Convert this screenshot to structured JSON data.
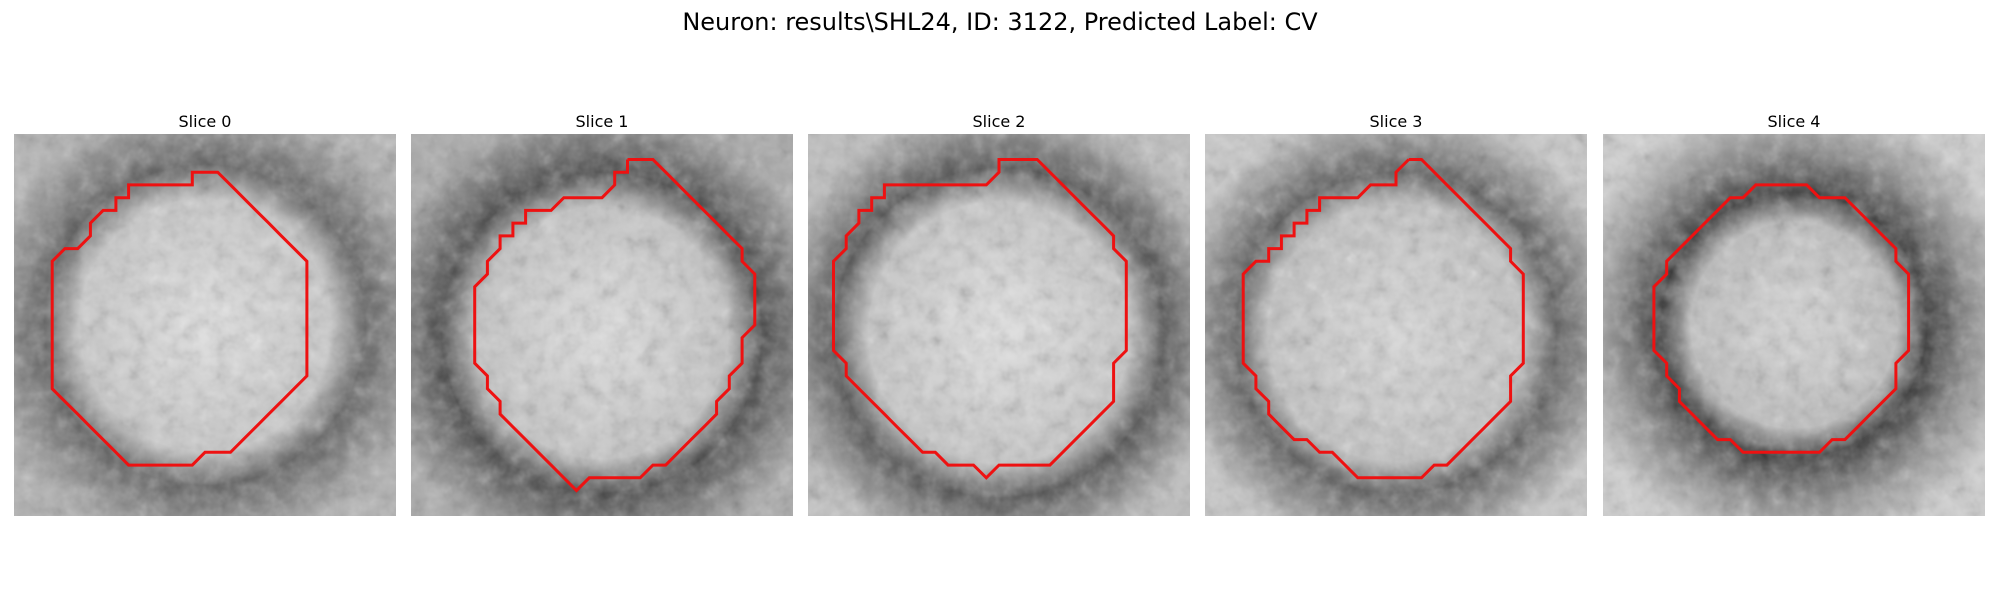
{
  "figure": {
    "suptitle": "Neuron: results\\SHL24, ID: 3122, Predicted Label: CV",
    "contour_color": "#ee1111"
  },
  "panels": [
    {
      "title": "Slice 0",
      "contour": [
        [
          9,
          2
        ],
        [
          10,
          2
        ],
        [
          11,
          3
        ],
        [
          12,
          4
        ],
        [
          13,
          5
        ],
        [
          14,
          6
        ],
        [
          15,
          7
        ],
        [
          16,
          8
        ],
        [
          17,
          9
        ],
        [
          17,
          10
        ],
        [
          17,
          11
        ],
        [
          17,
          12
        ],
        [
          17,
          13
        ],
        [
          17,
          14
        ],
        [
          17,
          15
        ],
        [
          17,
          16
        ],
        [
          17,
          17
        ],
        [
          17,
          18
        ],
        [
          16,
          19
        ],
        [
          15,
          20
        ],
        [
          14,
          21
        ],
        [
          13,
          22
        ],
        [
          12,
          23
        ],
        [
          11,
          24
        ],
        [
          10,
          24
        ],
        [
          9,
          24
        ],
        [
          8,
          25
        ],
        [
          7,
          25
        ],
        [
          6,
          25
        ],
        [
          5,
          25
        ],
        [
          4,
          25
        ],
        [
          3,
          25
        ],
        [
          2,
          24
        ],
        [
          1,
          23
        ],
        [
          0,
          22
        ],
        [
          -1,
          21
        ],
        [
          -2,
          20
        ],
        [
          -3,
          19
        ],
        [
          -3,
          18
        ],
        [
          -3,
          17
        ],
        [
          -3,
          16
        ],
        [
          -3,
          15
        ],
        [
          -3,
          14
        ],
        [
          -3,
          13
        ],
        [
          -3,
          12
        ],
        [
          -3,
          11
        ],
        [
          -3,
          10
        ],
        [
          -3,
          9
        ],
        [
          -2,
          8
        ],
        [
          -1,
          8
        ],
        [
          0,
          7
        ],
        [
          0,
          6
        ],
        [
          1,
          5
        ],
        [
          2,
          5
        ],
        [
          2,
          4
        ],
        [
          3,
          4
        ],
        [
          3,
          3
        ],
        [
          4,
          3
        ],
        [
          5,
          3
        ],
        [
          6,
          3
        ],
        [
          7,
          3
        ],
        [
          8,
          3
        ],
        [
          8,
          2
        ]
      ]
    },
    {
      "title": "Slice 1",
      "contour": [
        [
          11,
          1
        ],
        [
          12,
          1
        ],
        [
          13,
          1
        ],
        [
          14,
          2
        ],
        [
          15,
          3
        ],
        [
          16,
          4
        ],
        [
          17,
          5
        ],
        [
          18,
          6
        ],
        [
          19,
          7
        ],
        [
          20,
          8
        ],
        [
          20,
          9
        ],
        [
          21,
          10
        ],
        [
          21,
          11
        ],
        [
          21,
          12
        ],
        [
          21,
          13
        ],
        [
          21,
          14
        ],
        [
          20,
          15
        ],
        [
          20,
          16
        ],
        [
          20,
          17
        ],
        [
          19,
          18
        ],
        [
          19,
          19
        ],
        [
          18,
          20
        ],
        [
          18,
          21
        ],
        [
          17,
          22
        ],
        [
          16,
          23
        ],
        [
          15,
          24
        ],
        [
          14,
          25
        ],
        [
          13,
          25
        ],
        [
          12,
          26
        ],
        [
          11,
          26
        ],
        [
          10,
          26
        ],
        [
          9,
          26
        ],
        [
          8,
          26
        ],
        [
          7,
          27
        ],
        [
          6,
          26
        ],
        [
          5,
          25
        ],
        [
          4,
          24
        ],
        [
          3,
          23
        ],
        [
          2,
          22
        ],
        [
          1,
          21
        ],
        [
          1,
          20
        ],
        [
          0,
          19
        ],
        [
          0,
          18
        ],
        [
          -1,
          17
        ],
        [
          -1,
          16
        ],
        [
          -1,
          15
        ],
        [
          -1,
          14
        ],
        [
          -1,
          13
        ],
        [
          -1,
          12
        ],
        [
          -1,
          11
        ],
        [
          0,
          10
        ],
        [
          0,
          9
        ],
        [
          1,
          8
        ],
        [
          1,
          7
        ],
        [
          2,
          7
        ],
        [
          2,
          6
        ],
        [
          3,
          6
        ],
        [
          3,
          5
        ],
        [
          4,
          5
        ],
        [
          5,
          5
        ],
        [
          6,
          4
        ],
        [
          7,
          4
        ],
        [
          8,
          4
        ],
        [
          9,
          4
        ],
        [
          10,
          3
        ],
        [
          10,
          2
        ],
        [
          11,
          2
        ]
      ]
    },
    {
      "title": "Slice 2",
      "contour": [
        [
          10,
          1
        ],
        [
          11,
          1
        ],
        [
          12,
          1
        ],
        [
          13,
          2
        ],
        [
          14,
          3
        ],
        [
          15,
          4
        ],
        [
          16,
          5
        ],
        [
          17,
          6
        ],
        [
          18,
          7
        ],
        [
          18,
          8
        ],
        [
          19,
          9
        ],
        [
          19,
          10
        ],
        [
          19,
          11
        ],
        [
          19,
          12
        ],
        [
          19,
          13
        ],
        [
          19,
          14
        ],
        [
          19,
          15
        ],
        [
          19,
          16
        ],
        [
          18,
          17
        ],
        [
          18,
          18
        ],
        [
          18,
          19
        ],
        [
          18,
          20
        ],
        [
          17,
          21
        ],
        [
          16,
          22
        ],
        [
          15,
          23
        ],
        [
          14,
          24
        ],
        [
          13,
          25
        ],
        [
          12,
          25
        ],
        [
          11,
          25
        ],
        [
          10,
          25
        ],
        [
          9,
          25
        ],
        [
          8,
          26
        ],
        [
          7,
          25
        ],
        [
          6,
          25
        ],
        [
          5,
          25
        ],
        [
          4,
          24
        ],
        [
          3,
          24
        ],
        [
          2,
          23
        ],
        [
          1,
          22
        ],
        [
          0,
          21
        ],
        [
          -1,
          20
        ],
        [
          -2,
          19
        ],
        [
          -3,
          18
        ],
        [
          -3,
          17
        ],
        [
          -4,
          16
        ],
        [
          -4,
          15
        ],
        [
          -4,
          14
        ],
        [
          -4,
          13
        ],
        [
          -4,
          12
        ],
        [
          -4,
          11
        ],
        [
          -4,
          10
        ],
        [
          -4,
          9
        ],
        [
          -3,
          8
        ],
        [
          -3,
          7
        ],
        [
          -2,
          6
        ],
        [
          -2,
          5
        ],
        [
          -1,
          5
        ],
        [
          -1,
          4
        ],
        [
          0,
          4
        ],
        [
          0,
          3
        ],
        [
          1,
          3
        ],
        [
          2,
          3
        ],
        [
          3,
          3
        ],
        [
          4,
          3
        ],
        [
          5,
          3
        ],
        [
          6,
          3
        ],
        [
          7,
          3
        ],
        [
          8,
          3
        ],
        [
          9,
          2
        ],
        [
          9,
          1
        ]
      ]
    },
    {
      "title": "Slice 3",
      "contour": [
        [
          10,
          1
        ],
        [
          11,
          1
        ],
        [
          12,
          2
        ],
        [
          13,
          3
        ],
        [
          14,
          4
        ],
        [
          15,
          5
        ],
        [
          16,
          6
        ],
        [
          17,
          7
        ],
        [
          18,
          8
        ],
        [
          18,
          9
        ],
        [
          19,
          10
        ],
        [
          19,
          11
        ],
        [
          19,
          12
        ],
        [
          19,
          13
        ],
        [
          19,
          14
        ],
        [
          19,
          15
        ],
        [
          19,
          16
        ],
        [
          19,
          17
        ],
        [
          18,
          18
        ],
        [
          18,
          19
        ],
        [
          18,
          20
        ],
        [
          17,
          21
        ],
        [
          16,
          22
        ],
        [
          15,
          23
        ],
        [
          14,
          24
        ],
        [
          13,
          25
        ],
        [
          12,
          25
        ],
        [
          11,
          26
        ],
        [
          10,
          26
        ],
        [
          9,
          26
        ],
        [
          8,
          26
        ],
        [
          7,
          26
        ],
        [
          6,
          26
        ],
        [
          5,
          25
        ],
        [
          4,
          24
        ],
        [
          3,
          24
        ],
        [
          2,
          23
        ],
        [
          1,
          23
        ],
        [
          0,
          22
        ],
        [
          -1,
          21
        ],
        [
          -1,
          20
        ],
        [
          -2,
          19
        ],
        [
          -2,
          18
        ],
        [
          -3,
          17
        ],
        [
          -3,
          16
        ],
        [
          -3,
          15
        ],
        [
          -3,
          14
        ],
        [
          -3,
          13
        ],
        [
          -3,
          12
        ],
        [
          -3,
          11
        ],
        [
          -3,
          10
        ],
        [
          -2,
          9
        ],
        [
          -1,
          9
        ],
        [
          -1,
          8
        ],
        [
          0,
          8
        ],
        [
          0,
          7
        ],
        [
          1,
          7
        ],
        [
          1,
          6
        ],
        [
          2,
          6
        ],
        [
          2,
          5
        ],
        [
          3,
          5
        ],
        [
          3,
          4
        ],
        [
          4,
          4
        ],
        [
          5,
          4
        ],
        [
          6,
          4
        ],
        [
          7,
          3
        ],
        [
          8,
          3
        ],
        [
          9,
          3
        ],
        [
          9,
          2
        ]
      ]
    },
    {
      "title": "Slice 4",
      "contour": [
        [
          8,
          3
        ],
        [
          9,
          3
        ],
        [
          10,
          3
        ],
        [
          11,
          4
        ],
        [
          12,
          4
        ],
        [
          13,
          4
        ],
        [
          14,
          5
        ],
        [
          15,
          6
        ],
        [
          16,
          7
        ],
        [
          17,
          8
        ],
        [
          17,
          9
        ],
        [
          18,
          10
        ],
        [
          18,
          11
        ],
        [
          18,
          12
        ],
        [
          18,
          13
        ],
        [
          18,
          14
        ],
        [
          18,
          15
        ],
        [
          18,
          16
        ],
        [
          17,
          17
        ],
        [
          17,
          18
        ],
        [
          17,
          19
        ],
        [
          16,
          20
        ],
        [
          15,
          21
        ],
        [
          14,
          22
        ],
        [
          13,
          23
        ],
        [
          12,
          23
        ],
        [
          11,
          24
        ],
        [
          10,
          24
        ],
        [
          9,
          24
        ],
        [
          8,
          24
        ],
        [
          7,
          24
        ],
        [
          6,
          24
        ],
        [
          5,
          24
        ],
        [
          4,
          23
        ],
        [
          3,
          23
        ],
        [
          2,
          22
        ],
        [
          1,
          21
        ],
        [
          0,
          20
        ],
        [
          0,
          19
        ],
        [
          -1,
          18
        ],
        [
          -1,
          17
        ],
        [
          -2,
          16
        ],
        [
          -2,
          15
        ],
        [
          -2,
          14
        ],
        [
          -2,
          13
        ],
        [
          -2,
          12
        ],
        [
          -2,
          11
        ],
        [
          -1,
          10
        ],
        [
          -1,
          9
        ],
        [
          0,
          8
        ],
        [
          1,
          7
        ],
        [
          2,
          6
        ],
        [
          3,
          5
        ],
        [
          4,
          4
        ],
        [
          5,
          4
        ],
        [
          6,
          3
        ],
        [
          7,
          3
        ]
      ]
    }
  ]
}
